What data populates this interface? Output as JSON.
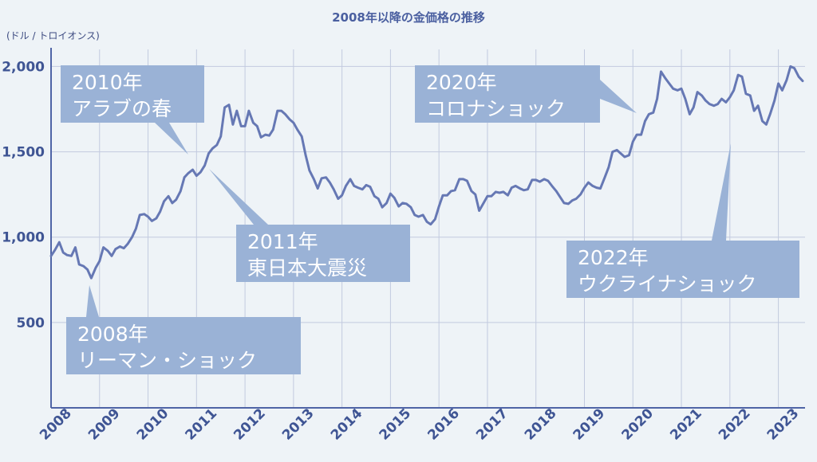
{
  "chart_data": {
    "type": "line",
    "title": "2008年以降の金価格の推移",
    "ylabel": "(ドル / トロイオンス)",
    "ylim": [
      0,
      2100
    ],
    "xlim": [
      2008.0,
      2023.55
    ],
    "grid": true,
    "colors": {
      "line": "#6678b4",
      "grid": "#c2cadf",
      "axis": "#4f64a6",
      "annotation_box": "#9ab2d6",
      "background": "#eef3f7"
    },
    "y_ticks": [
      {
        "value": 500,
        "label": "500"
      },
      {
        "value": 1000,
        "label": "1,000"
      },
      {
        "value": 1500,
        "label": "1,500"
      },
      {
        "value": 2000,
        "label": "2,000"
      }
    ],
    "x_ticks": [
      "2008",
      "2009",
      "2010",
      "2011",
      "2012",
      "2013",
      "2014",
      "2015",
      "2016",
      "2017",
      "2018",
      "2019",
      "2020",
      "2021",
      "2022",
      "2023"
    ],
    "series": [
      {
        "x": [
          2008.0,
          2008.08,
          2008.17,
          2008.25,
          2008.33,
          2008.42,
          2008.5,
          2008.58,
          2008.67,
          2008.75,
          2008.83,
          2008.92,
          2009.0,
          2009.08,
          2009.17,
          2009.25,
          2009.33,
          2009.42,
          2009.5,
          2009.58,
          2009.67,
          2009.75,
          2009.83,
          2009.92,
          2010.0,
          2010.08,
          2010.17,
          2010.25,
          2010.33,
          2010.42,
          2010.5,
          2010.58,
          2010.67,
          2010.75,
          2010.83,
          2010.92,
          2011.0,
          2011.08,
          2011.17,
          2011.25,
          2011.33,
          2011.42,
          2011.5,
          2011.58,
          2011.67,
          2011.75,
          2011.83,
          2011.92,
          2012.0,
          2012.08,
          2012.17,
          2012.25,
          2012.33,
          2012.42,
          2012.5,
          2012.58,
          2012.67,
          2012.75,
          2012.83,
          2012.92,
          2013.0,
          2013.08,
          2013.17,
          2013.25,
          2013.33,
          2013.42,
          2013.5,
          2013.58,
          2013.67,
          2013.75,
          2013.83,
          2013.92,
          2014.0,
          2014.08,
          2014.17,
          2014.25,
          2014.33,
          2014.42,
          2014.5,
          2014.58,
          2014.67,
          2014.75,
          2014.83,
          2014.92,
          2015.0,
          2015.08,
          2015.17,
          2015.25,
          2015.33,
          2015.42,
          2015.5,
          2015.58,
          2015.67,
          2015.75,
          2015.83,
          2015.92,
          2016.0,
          2016.08,
          2016.17,
          2016.25,
          2016.33,
          2016.42,
          2016.5,
          2016.58,
          2016.67,
          2016.75,
          2016.83,
          2016.92,
          2017.0,
          2017.08,
          2017.17,
          2017.25,
          2017.33,
          2017.42,
          2017.5,
          2017.58,
          2017.67,
          2017.75,
          2017.83,
          2017.92,
          2018.0,
          2018.08,
          2018.17,
          2018.25,
          2018.33,
          2018.42,
          2018.5,
          2018.58,
          2018.67,
          2018.75,
          2018.83,
          2018.92,
          2019.0,
          2019.08,
          2019.17,
          2019.25,
          2019.33,
          2019.42,
          2019.5,
          2019.58,
          2019.67,
          2019.75,
          2019.83,
          2019.92,
          2020.0,
          2020.08,
          2020.17,
          2020.25,
          2020.33,
          2020.42,
          2020.5,
          2020.58,
          2020.67,
          2020.75,
          2020.83,
          2020.92,
          2021.0,
          2021.08,
          2021.17,
          2021.25,
          2021.33,
          2021.42,
          2021.5,
          2021.58,
          2021.67,
          2021.75,
          2021.83,
          2021.92,
          2022.0,
          2022.08,
          2022.17,
          2022.25,
          2022.33,
          2022.42,
          2022.5,
          2022.58,
          2022.67,
          2022.75,
          2022.83,
          2022.92,
          2023.0,
          2023.08,
          2023.17,
          2023.25,
          2023.33,
          2023.42,
          2023.5
        ],
        "values": [
          890,
          925,
          970,
          910,
          895,
          890,
          940,
          840,
          830,
          810,
          760,
          820,
          860,
          940,
          920,
          890,
          930,
          945,
          935,
          960,
          1000,
          1050,
          1130,
          1135,
          1120,
          1095,
          1110,
          1150,
          1210,
          1240,
          1200,
          1220,
          1270,
          1350,
          1375,
          1395,
          1360,
          1380,
          1420,
          1490,
          1520,
          1540,
          1590,
          1760,
          1775,
          1660,
          1740,
          1650,
          1650,
          1740,
          1670,
          1650,
          1585,
          1600,
          1595,
          1630,
          1740,
          1740,
          1720,
          1690,
          1670,
          1630,
          1590,
          1480,
          1390,
          1340,
          1285,
          1345,
          1350,
          1320,
          1280,
          1225,
          1245,
          1300,
          1340,
          1300,
          1290,
          1280,
          1305,
          1295,
          1240,
          1225,
          1175,
          1200,
          1255,
          1230,
          1180,
          1200,
          1195,
          1175,
          1130,
          1120,
          1130,
          1090,
          1075,
          1105,
          1180,
          1245,
          1245,
          1270,
          1275,
          1340,
          1340,
          1330,
          1270,
          1250,
          1155,
          1200,
          1240,
          1240,
          1265,
          1260,
          1265,
          1245,
          1290,
          1300,
          1285,
          1275,
          1280,
          1335,
          1335,
          1325,
          1340,
          1330,
          1300,
          1270,
          1235,
          1200,
          1195,
          1215,
          1225,
          1250,
          1290,
          1320,
          1300,
          1290,
          1285,
          1350,
          1410,
          1500,
          1510,
          1490,
          1470,
          1480,
          1560,
          1600,
          1600,
          1680,
          1720,
          1730,
          1810,
          1970,
          1930,
          1900,
          1870,
          1860,
          1870,
          1810,
          1720,
          1760,
          1850,
          1830,
          1800,
          1780,
          1770,
          1780,
          1810,
          1790,
          1820,
          1860,
          1950,
          1940,
          1840,
          1830,
          1740,
          1770,
          1680,
          1660,
          1720,
          1800,
          1900,
          1860,
          1920,
          2000,
          1990,
          1940,
          1915
        ]
      }
    ],
    "annotations": [
      {
        "lines": [
          "2008年",
          "リーマン・ショック"
        ]
      },
      {
        "lines": [
          "2010年",
          "アラブの春"
        ]
      },
      {
        "lines": [
          "2011年",
          "東日本大震災"
        ]
      },
      {
        "lines": [
          "2020年",
          "コロナショック"
        ]
      },
      {
        "lines": [
          "2022年",
          "ウクライナショック"
        ]
      }
    ]
  }
}
